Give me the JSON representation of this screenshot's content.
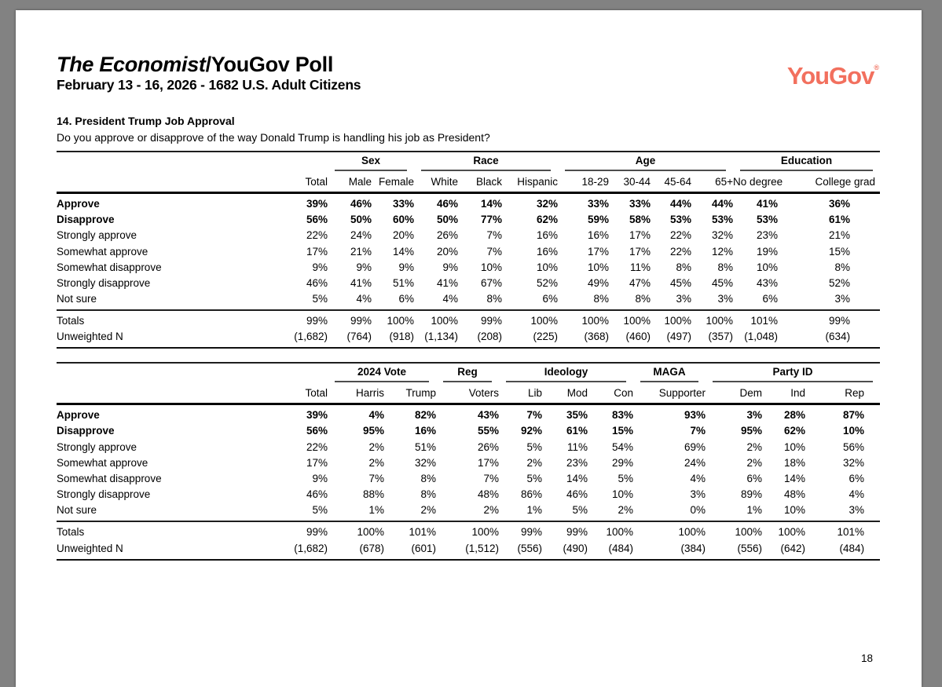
{
  "header": {
    "title_italic": "The Economist",
    "title_rest": "/YouGov Poll",
    "subtitle": "February 13 - 16, 2026 - 1682 U.S. Adult Citizens"
  },
  "logo": {
    "text": "YouGov",
    "mark": "®",
    "color": "#F2705E"
  },
  "question": {
    "number_title": "14. President Trump Job Approval",
    "text": "Do you approve or disapprove of the way Donald Trump is handling his job as President?"
  },
  "page_number": "18",
  "tables": [
    {
      "name": "demographics-table",
      "groups": [
        {
          "label": "Sex",
          "span": 2
        },
        {
          "label": "Race",
          "span": 3
        },
        {
          "label": "Age",
          "span": 4
        },
        {
          "label": "Education",
          "span": 2
        }
      ],
      "col_headers": [
        "Total",
        "Male",
        "Female",
        "White",
        "Black",
        "Hispanic",
        "18-29",
        "30-44",
        "45-64",
        "65+",
        "No degree",
        "College grad"
      ],
      "rows": [
        {
          "label": "Approve",
          "bold": true,
          "values": [
            "39%",
            "46%",
            "33%",
            "46%",
            "14%",
            "32%",
            "33%",
            "33%",
            "44%",
            "44%",
            "41%",
            "36%"
          ]
        },
        {
          "label": "Disapprove",
          "bold": true,
          "values": [
            "56%",
            "50%",
            "60%",
            "50%",
            "77%",
            "62%",
            "59%",
            "58%",
            "53%",
            "53%",
            "53%",
            "61%"
          ]
        },
        {
          "label": "Strongly approve",
          "values": [
            "22%",
            "24%",
            "20%",
            "26%",
            "7%",
            "16%",
            "16%",
            "17%",
            "22%",
            "32%",
            "23%",
            "21%"
          ]
        },
        {
          "label": "Somewhat approve",
          "values": [
            "17%",
            "21%",
            "14%",
            "20%",
            "7%",
            "16%",
            "17%",
            "17%",
            "22%",
            "12%",
            "19%",
            "15%"
          ]
        },
        {
          "label": "Somewhat disapprove",
          "values": [
            "9%",
            "9%",
            "9%",
            "9%",
            "10%",
            "10%",
            "10%",
            "11%",
            "8%",
            "8%",
            "10%",
            "8%"
          ]
        },
        {
          "label": "Strongly disapprove",
          "values": [
            "46%",
            "41%",
            "51%",
            "41%",
            "67%",
            "52%",
            "49%",
            "47%",
            "45%",
            "45%",
            "43%",
            "52%"
          ]
        },
        {
          "label": "Not sure",
          "values": [
            "5%",
            "4%",
            "6%",
            "4%",
            "8%",
            "6%",
            "8%",
            "8%",
            "3%",
            "3%",
            "6%",
            "3%"
          ]
        }
      ],
      "footer_rows": [
        {
          "label": "Totals",
          "values": [
            "99%",
            "99%",
            "100%",
            "100%",
            "99%",
            "100%",
            "100%",
            "100%",
            "100%",
            "100%",
            "101%",
            "99%"
          ]
        },
        {
          "label": "Unweighted N",
          "values": [
            "(1,682)",
            "(764)",
            "(918)",
            "(1,134)",
            "(208)",
            "(225)",
            "(368)",
            "(460)",
            "(497)",
            "(357)",
            "(1,048)",
            "(634)"
          ]
        }
      ]
    },
    {
      "name": "politics-table",
      "groups": [
        {
          "label": "2024 Vote",
          "span": 2
        },
        {
          "label": "Reg",
          "span": 1
        },
        {
          "label": "Ideology",
          "span": 3
        },
        {
          "label": "MAGA",
          "span": 1
        },
        {
          "label": "Party ID",
          "span": 3
        }
      ],
      "col_headers": [
        "Total",
        "Harris",
        "Trump",
        "Voters",
        "Lib",
        "Mod",
        "Con",
        "Supporter",
        "Dem",
        "Ind",
        "Rep"
      ],
      "rows": [
        {
          "label": "Approve",
          "bold": true,
          "values": [
            "39%",
            "4%",
            "82%",
            "43%",
            "7%",
            "35%",
            "83%",
            "93%",
            "3%",
            "28%",
            "87%"
          ]
        },
        {
          "label": "Disapprove",
          "bold": true,
          "values": [
            "56%",
            "95%",
            "16%",
            "55%",
            "92%",
            "61%",
            "15%",
            "7%",
            "95%",
            "62%",
            "10%"
          ]
        },
        {
          "label": "Strongly approve",
          "values": [
            "22%",
            "2%",
            "51%",
            "26%",
            "5%",
            "11%",
            "54%",
            "69%",
            "2%",
            "10%",
            "56%"
          ]
        },
        {
          "label": "Somewhat approve",
          "values": [
            "17%",
            "2%",
            "32%",
            "17%",
            "2%",
            "23%",
            "29%",
            "24%",
            "2%",
            "18%",
            "32%"
          ]
        },
        {
          "label": "Somewhat disapprove",
          "values": [
            "9%",
            "7%",
            "8%",
            "7%",
            "5%",
            "14%",
            "5%",
            "4%",
            "6%",
            "14%",
            "6%"
          ]
        },
        {
          "label": "Strongly disapprove",
          "values": [
            "46%",
            "88%",
            "8%",
            "48%",
            "86%",
            "46%",
            "10%",
            "3%",
            "89%",
            "48%",
            "4%"
          ]
        },
        {
          "label": "Not sure",
          "values": [
            "5%",
            "1%",
            "2%",
            "2%",
            "1%",
            "5%",
            "2%",
            "0%",
            "1%",
            "10%",
            "3%"
          ]
        }
      ],
      "footer_rows": [
        {
          "label": "Totals",
          "values": [
            "99%",
            "100%",
            "101%",
            "100%",
            "99%",
            "99%",
            "100%",
            "100%",
            "100%",
            "100%",
            "101%"
          ]
        },
        {
          "label": "Unweighted N",
          "values": [
            "(1,682)",
            "(678)",
            "(601)",
            "(1,512)",
            "(556)",
            "(490)",
            "(484)",
            "(384)",
            "(556)",
            "(642)",
            "(484)"
          ]
        }
      ]
    }
  ]
}
